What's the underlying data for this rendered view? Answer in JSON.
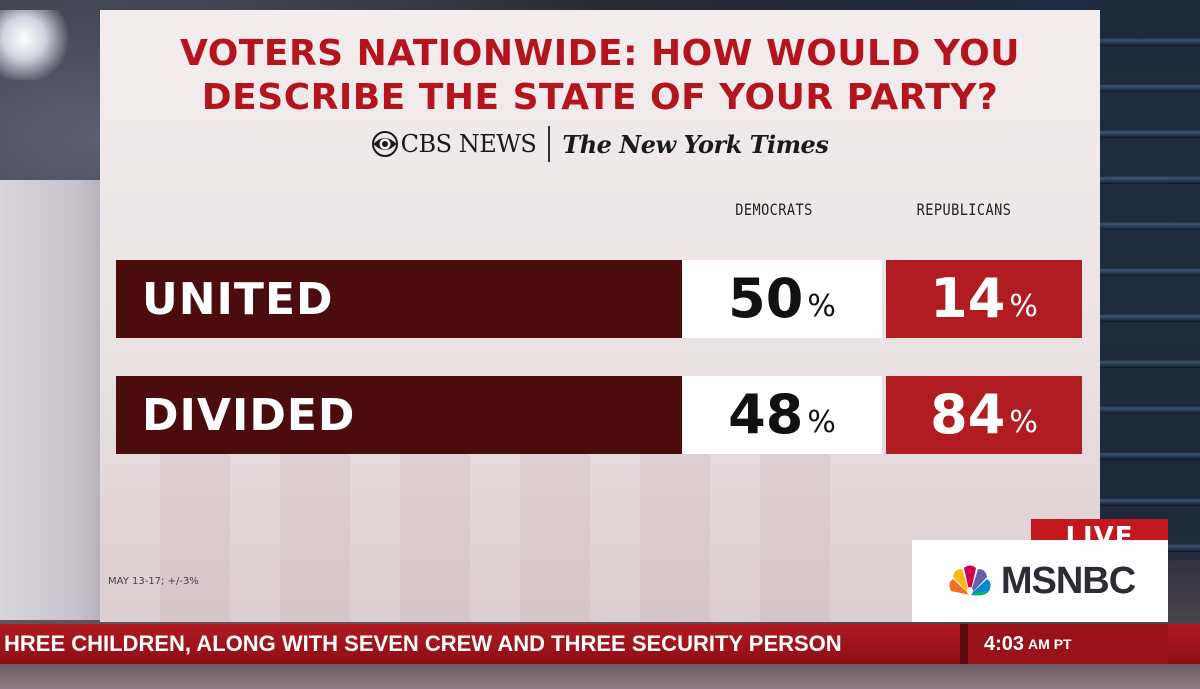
{
  "graphic": {
    "title_line1": "VOTERS NATIONWIDE: HOW WOULD YOU",
    "title_line2": "DESCRIBE THE STATE OF YOUR PARTY?",
    "source_cbs": "CBS NEWS",
    "source_nyt": "The New York Times",
    "columns": [
      "DEMOCRATS",
      "REPUBLICANS"
    ],
    "rows": [
      {
        "label": "UNITED",
        "democrats": "50",
        "republicans": "14"
      },
      {
        "label": "DIVIDED",
        "democrats": "48",
        "republicans": "84"
      }
    ],
    "percent_sign": "%",
    "footnote": "MAY 13-17; +/-3%",
    "colors": {
      "title": "#b4141e",
      "row_label_bg": "#4a0c0c",
      "republican_bg": "#b01c22"
    }
  },
  "network": {
    "live_label": "LIVE",
    "logo_text": "MSNBC"
  },
  "ticker": {
    "headline": "HREE CHILDREN, ALONG WITH SEVEN CREW AND THREE SECURITY PERSON",
    "time": "4:03",
    "meridiem": "AM PT"
  }
}
